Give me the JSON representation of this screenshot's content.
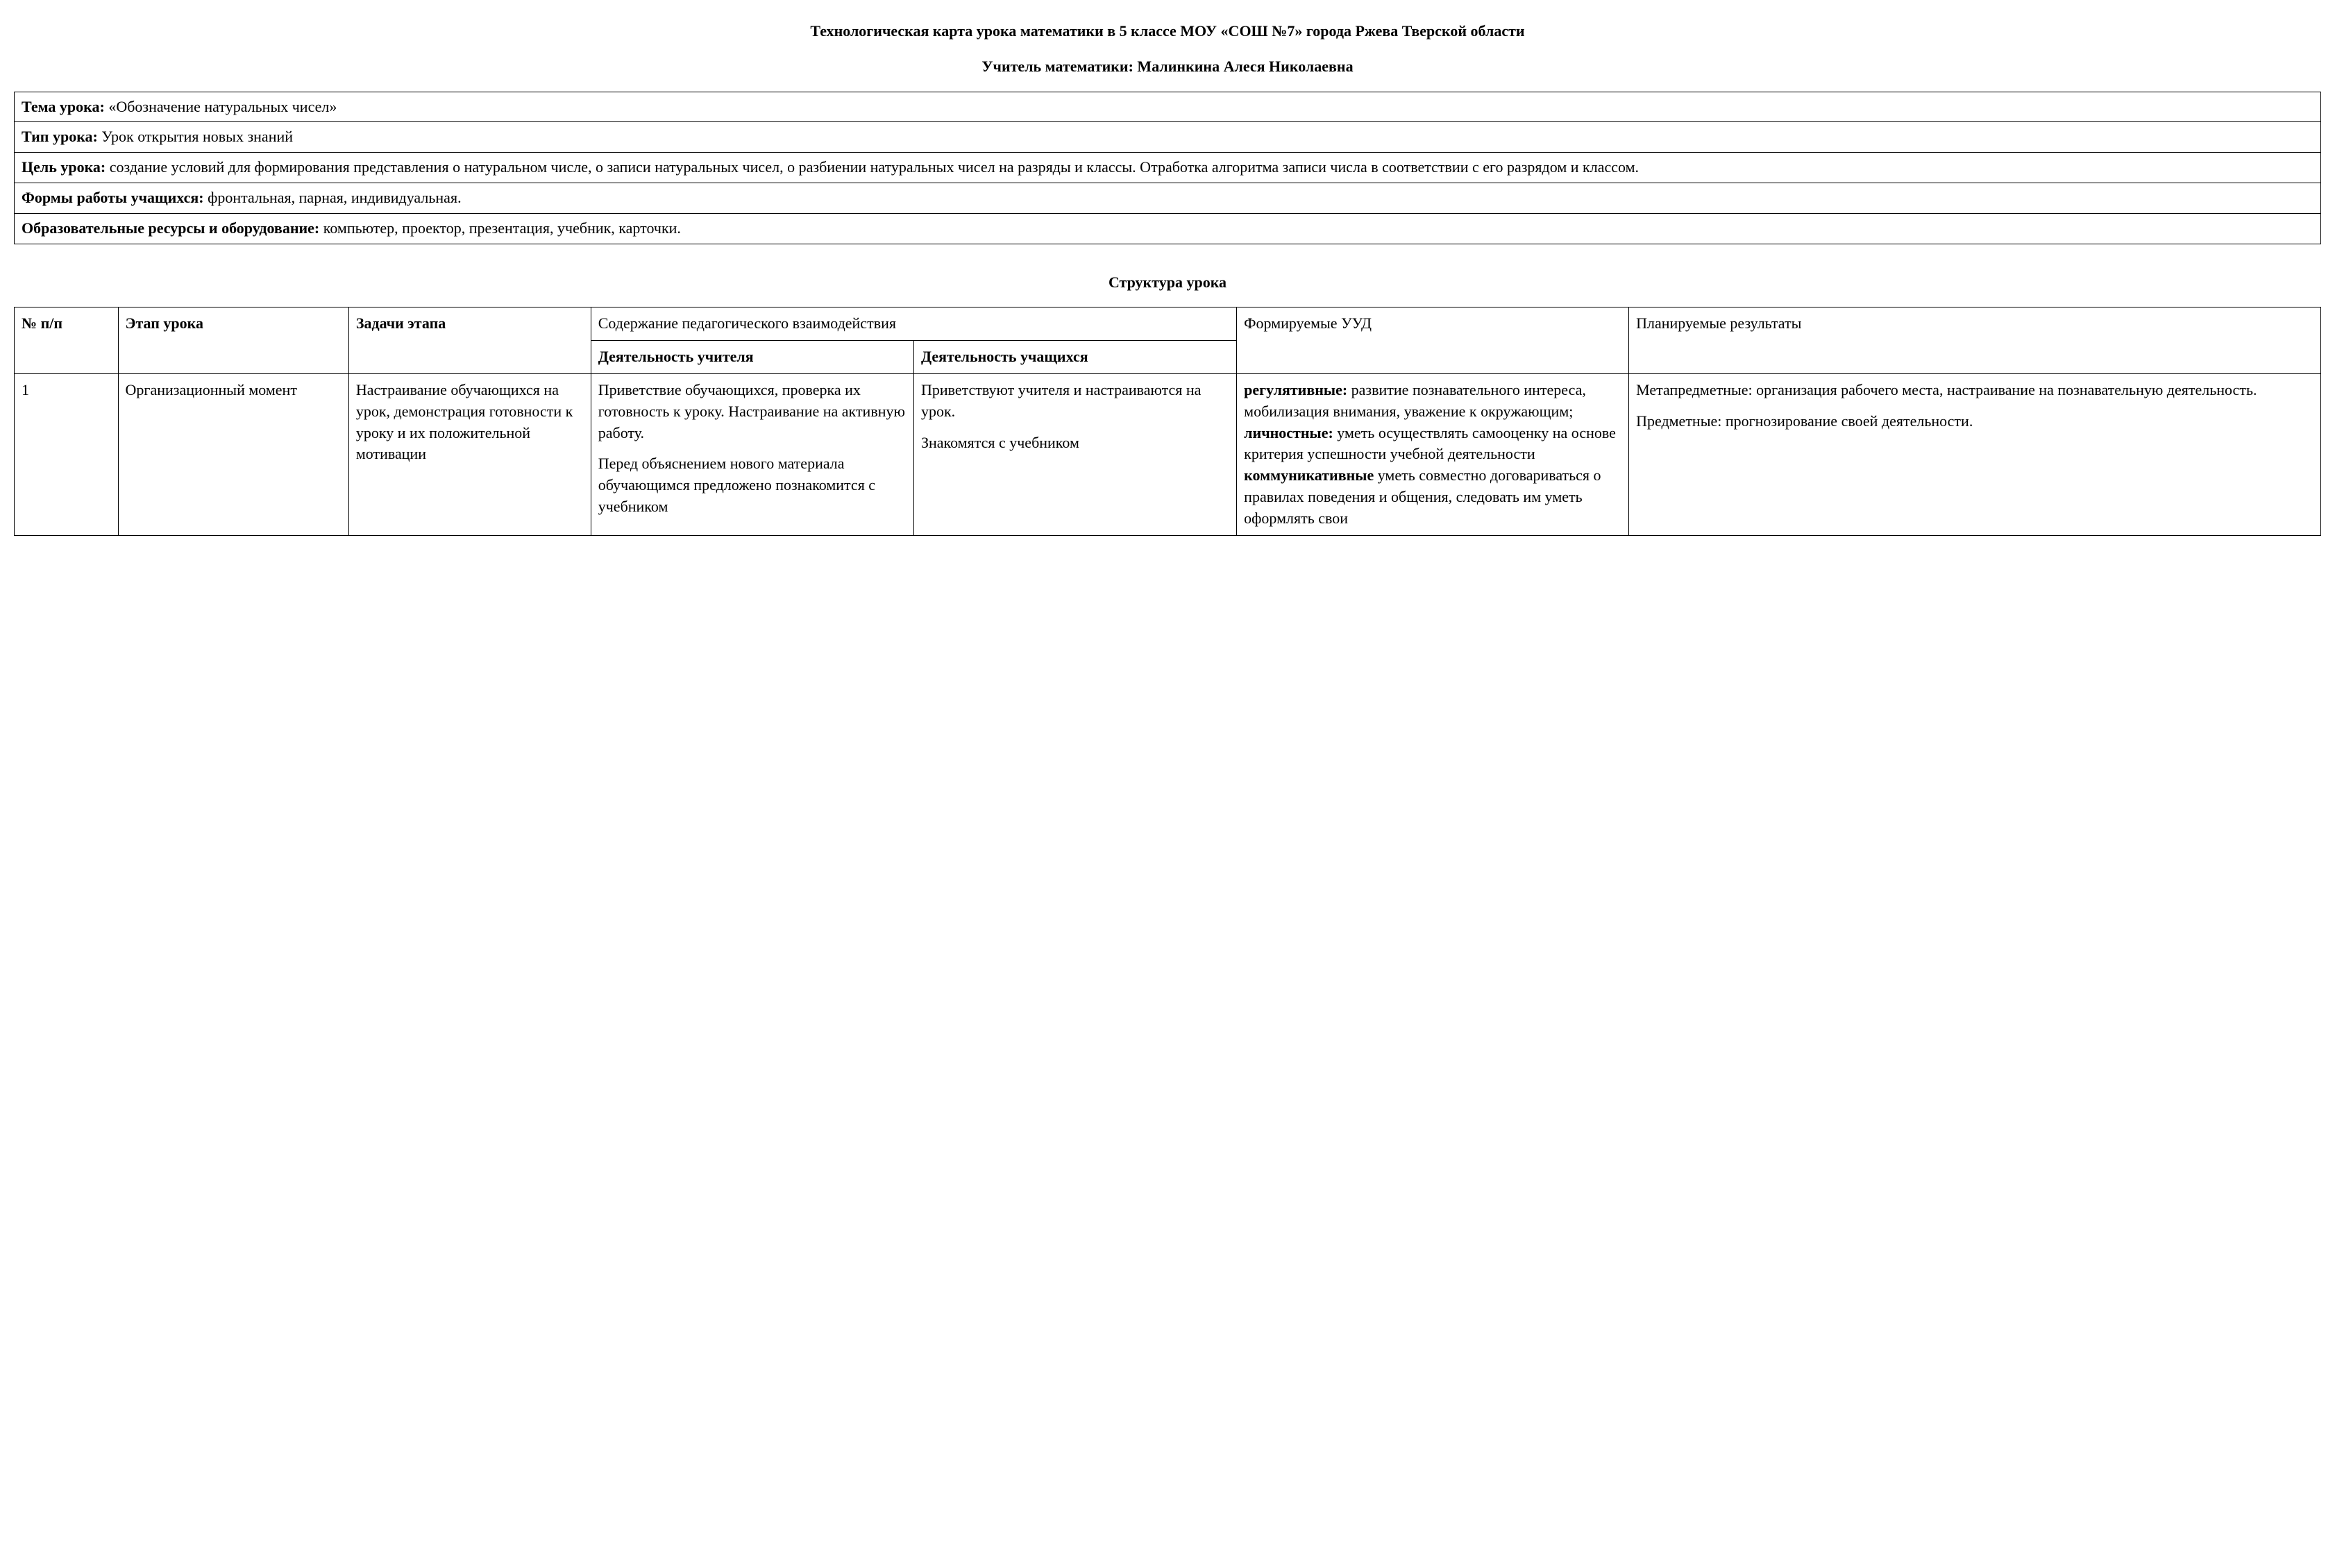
{
  "titles": {
    "main": "Технологическая карта урока математики в 5 классе МОУ «СОШ №7» города Ржева Тверской области",
    "sub": "Учитель математики: Малинкина Алеся Николаевна"
  },
  "info_rows": {
    "topic_label": "Тема урока: ",
    "topic_value": "«Обозначение натуральных чисел»",
    "type_label": "Тип урока: ",
    "type_value": "Урок открытия новых знаний",
    "goal_label": "Цель урока: ",
    "goal_value": "создание условий для формирования представления о натуральном числе, о записи натуральных чисел, о разбиении натуральных чисел на разряды и классы. Отработка алгоритма записи числа в соответствии с его разрядом и классом.",
    "forms_label": "Формы работы учащихся: ",
    "forms_value": "фронтальная, парная, индивидуальная.",
    "resources_label": "Образовательные ресурсы и оборудование: ",
    "resources_value": "компьютер, проектор, презентация, учебник, карточки."
  },
  "section_title": "Структура урока",
  "headers": {
    "num": "№ п/п",
    "stage": "Этап урока",
    "tasks": "Задачи этапа",
    "interaction": "Содержание педагогического взаимодействия",
    "teacher": "Деятельность учителя",
    "students": "Деятельность учащихся",
    "uud": "Формируемые УУД",
    "results": "Планируемые результаты"
  },
  "row1": {
    "num": "1",
    "stage": "Организационный момент",
    "tasks": "Настраивание обучающихся на урок, демонстрация готовности к уроку и их положительной мотивации",
    "teacher_p1": "Приветствие обучающихся, проверка их готовность к уроку. Настраивание на активную работу.",
    "teacher_p2": "Перед объяснением нового материала обучающимся предложено познакомится с учебником",
    "students_p1": "Приветствуют учителя и настраиваются на урок.",
    "students_p2": "Знакомятся с учебником",
    "uud_reg_label": "регулятивные:",
    "uud_reg_text": " развитие познавательного интереса, мобилизация внимания, уважение к окружающим;",
    "uud_pers_label": "личностные:",
    "uud_pers_text": " уметь осуществлять самооценку на основе критерия успешности учебной деятельности",
    "uud_comm_label": "коммуникативные",
    "uud_comm_text": " уметь совместно договариваться о правилах поведения и общения, следовать им уметь оформлять свои",
    "results_p1": "Метапредметные: организация рабочего места, настраивание на познавательную деятельность.",
    "results_p2": "Предметные: прогнозирование своей деятельности."
  }
}
